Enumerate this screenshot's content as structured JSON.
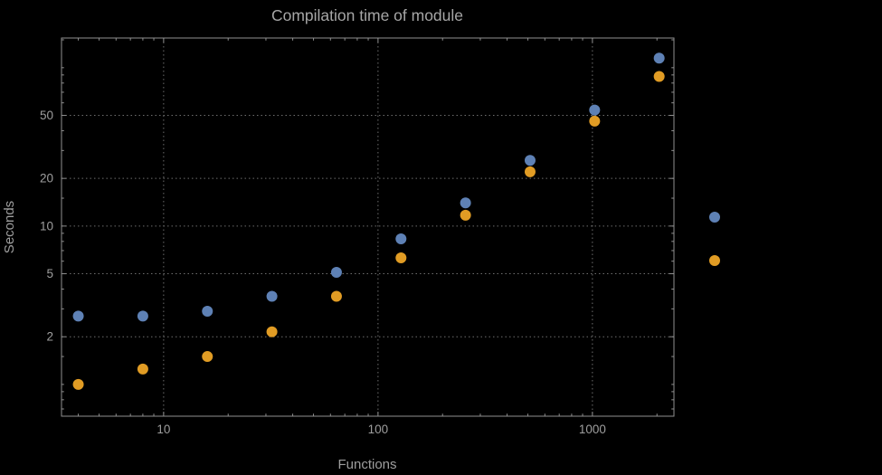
{
  "chart_data": {
    "type": "scatter",
    "title": "Compilation time of module",
    "xlabel": "Functions",
    "ylabel": "Seconds",
    "x_scale": "log",
    "y_scale": "log",
    "xlim": [
      3.34,
      2400
    ],
    "ylim": [
      0.63,
      154
    ],
    "grid": true,
    "legend_position": "right",
    "x": [
      4,
      8,
      16,
      32,
      64,
      128,
      256,
      512,
      1024,
      2048
    ],
    "series": [
      {
        "name": "blue",
        "color": "#5e81b5",
        "values": [
          2.7,
          2.7,
          2.9,
          3.6,
          5.1,
          8.3,
          14,
          26,
          54,
          115
        ]
      },
      {
        "name": "orange",
        "color": "#e19c24",
        "values": [
          1.0,
          1.25,
          1.5,
          2.15,
          3.6,
          6.3,
          11.7,
          22,
          46,
          88
        ]
      }
    ],
    "x_ticks": {
      "major": [
        10,
        100,
        1000
      ],
      "labels": [
        "10",
        "100",
        "1000"
      ],
      "minor": [
        4,
        5,
        6,
        7,
        8,
        9,
        20,
        30,
        40,
        50,
        60,
        70,
        80,
        90,
        200,
        300,
        400,
        500,
        600,
        700,
        800,
        900,
        2000
      ]
    },
    "y_ticks": {
      "major": [
        2,
        5,
        10,
        20,
        50
      ],
      "labels": [
        "2",
        "5",
        "10",
        "20",
        "50"
      ],
      "minor": [
        0.7,
        0.8,
        0.9,
        1,
        1.5,
        3,
        4,
        6,
        7,
        8,
        9,
        15,
        30,
        40,
        60,
        70,
        80,
        90,
        100,
        150
      ]
    },
    "colors": {
      "background": "#000000",
      "frame": "#8f8f8f",
      "text": "#9e9e9e",
      "grid": "#6e6e6e"
    }
  }
}
